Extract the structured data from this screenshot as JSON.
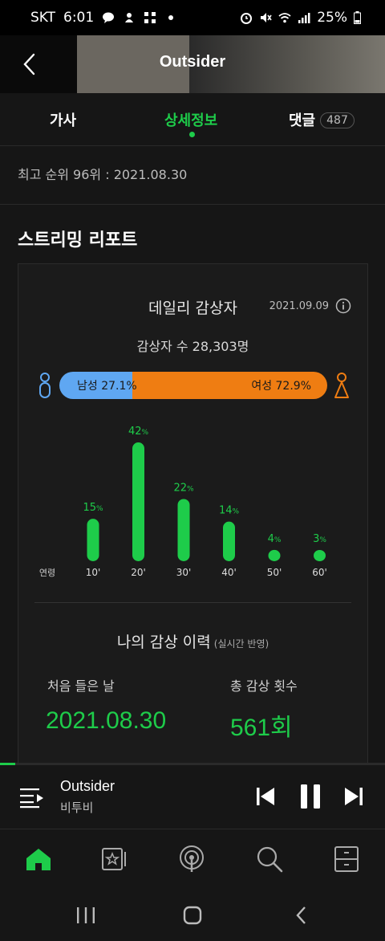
{
  "status_bar": {
    "carrier": "SKT",
    "time": "6:01",
    "battery": "25%"
  },
  "header": {
    "title": "Outsider"
  },
  "tabs": [
    {
      "label": "가사",
      "active": false
    },
    {
      "label": "상세정보",
      "active": true
    },
    {
      "label": "댓글",
      "count": "487",
      "active": false
    }
  ],
  "chart_info": {
    "peak_rank": "최고 순위 96위 : 2021.08.30"
  },
  "streaming_report": {
    "section_title": "스트리밍 리포트",
    "daily_title": "데일리 감상자",
    "date": "2021.09.09",
    "listeners": "감상자 수 28,303명",
    "gender": {
      "male_label": "남성 27.1%",
      "female_label": "여성 72.9%",
      "male_percent": 27.1,
      "female_percent": 72.9,
      "male_color": "#5fa7f2",
      "female_color": "#ef7d12"
    }
  },
  "chart_data": {
    "type": "bar",
    "xlabel": "연령",
    "categories": [
      "10'",
      "20'",
      "30'",
      "40'",
      "50'",
      "60'"
    ],
    "values": [
      15,
      42,
      22,
      14,
      4,
      3
    ],
    "unit": "%",
    "color": "#1ecc4a",
    "ylim": [
      0,
      42
    ]
  },
  "history": {
    "title": "나의 감상 이력",
    "subtitle": "(실시간 반영)",
    "first_label": "처음 들은 날",
    "first_value": "2021.08.30",
    "total_label": "총 감상 횟수",
    "total_value": "561회"
  },
  "player": {
    "song": "Outsider",
    "artist": "비투비",
    "progress": 0.04
  },
  "bottom_nav": [
    "home-icon",
    "playlist-icon",
    "podcast-icon",
    "search-icon",
    "library-icon"
  ],
  "accent_color": "#1ecc4a"
}
